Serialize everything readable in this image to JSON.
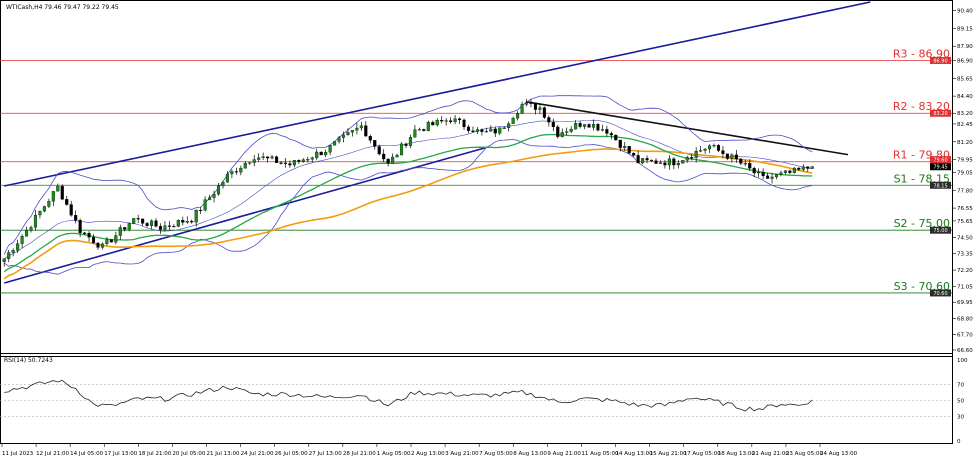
{
  "header": {
    "symbol_info": "WTICash,H4  79.46 79.47 79.22 79.45",
    "rsi_label": "RSI(14) 50.7243"
  },
  "chart_data": [
    {
      "type": "candlestick",
      "ylim": [
        66.6,
        91.0
      ],
      "y_ticks": [
        "90.40",
        "89.15",
        "87.90",
        "86.90",
        "85.65",
        "84.40",
        "83.20",
        "82.45",
        "81.20",
        "79.95",
        "79.05",
        "77.80",
        "76.55",
        "75.65",
        "74.50",
        "73.35",
        "72.20",
        "71.05",
        "69.95",
        "68.80",
        "67.70",
        "66.60"
      ],
      "x_labels": [
        "11 Jul 2023",
        "12 Jul 21:00",
        "14 Jul 05:00",
        "17 Jul 13:00",
        "18 Jul 21:00",
        "20 Jul 05:00",
        "21 Jul 13:00",
        "24 Jul 21:00",
        "26 Jul 05:00",
        "27 Jul 13:00",
        "28 Jul 21:00",
        "1 Aug 05:00",
        "2 Aug 13:00",
        "3 Aug 21:00",
        "7 Aug 05:00",
        "8 Aug 13:00",
        "9 Aug 21:00",
        "11 Aug 05:00",
        "14 Aug 13:00",
        "15 Aug 21:00",
        "17 Aug 05:00",
        "18 Aug 13:00",
        "21 Aug 21:00",
        "23 Aug 05:00",
        "24 Aug 13:00"
      ],
      "levels": [
        {
          "name": "R3",
          "value": 86.9,
          "label": "R3 - 86.90",
          "color": "#e03030"
        },
        {
          "name": "R2",
          "value": 83.2,
          "label": "R2 - 83.20",
          "color": "#e03030"
        },
        {
          "name": "R1",
          "value": 79.8,
          "label": "R1 - 79.80",
          "color": "#e03030"
        },
        {
          "name": "S1",
          "value": 78.15,
          "label": "S1 - 78.15",
          "color": "#1a7a1a"
        },
        {
          "name": "S2",
          "value": 75.0,
          "label": "S2 - 75.00",
          "color": "#1a7a1a"
        },
        {
          "name": "S3",
          "value": 70.6,
          "label": "S3 - 70.60",
          "color": "#1a7a1a"
        }
      ],
      "level_tags": [
        "86.90",
        "83.20",
        "79.80",
        "78.15",
        "75.00",
        "70.60"
      ],
      "current_price_tag": "79.45",
      "current_price": 79.45,
      "ma_tag": "79.60",
      "ma_value": 79.6,
      "trend_lines": [
        {
          "name": "channel-upper",
          "color": "#1a1a9a",
          "x0": 0,
          "y0": 78.1,
          "x1": 194,
          "y1": 91.0
        },
        {
          "name": "channel-lower",
          "color": "#1a1a9a",
          "x0": 0,
          "y0": 71.3,
          "x1": 108,
          "y1": 80.8
        },
        {
          "name": "downtrend",
          "color": "#111111",
          "x0": 117,
          "y0": 84.0,
          "x1": 189,
          "y1": 80.3
        }
      ],
      "candles_count": 195,
      "close_anchors": [
        [
          0,
          73.0
        ],
        [
          5,
          75.0
        ],
        [
          12,
          78.0
        ],
        [
          17,
          75.0
        ],
        [
          22,
          73.8
        ],
        [
          29,
          75.8
        ],
        [
          35,
          75.2
        ],
        [
          42,
          75.8
        ],
        [
          50,
          78.8
        ],
        [
          56,
          80.2
        ],
        [
          64,
          79.6
        ],
        [
          72,
          80.6
        ],
        [
          80,
          82.3
        ],
        [
          86,
          79.6
        ],
        [
          92,
          82.0
        ],
        [
          100,
          82.8
        ],
        [
          107,
          81.8
        ],
        [
          111,
          82.0
        ],
        [
          116,
          83.8
        ],
        [
          120,
          83.6
        ],
        [
          124,
          81.8
        ],
        [
          130,
          82.6
        ],
        [
          135,
          82.0
        ],
        [
          142,
          79.8
        ],
        [
          150,
          79.8
        ],
        [
          158,
          80.9
        ],
        [
          164,
          79.9
        ],
        [
          170,
          78.6
        ],
        [
          176,
          79.0
        ],
        [
          181,
          79.45
        ]
      ],
      "rsi": {
        "levels": [
          70,
          50,
          30
        ],
        "ylim": [
          0,
          100
        ],
        "tick_labels": [
          "100",
          "70",
          "50",
          "30",
          "0"
        ],
        "value": 50.7243,
        "anchors": [
          [
            0,
            62
          ],
          [
            6,
            68
          ],
          [
            12,
            75
          ],
          [
            16,
            65
          ],
          [
            20,
            45
          ],
          [
            24,
            43
          ],
          [
            30,
            52
          ],
          [
            36,
            52
          ],
          [
            42,
            58
          ],
          [
            50,
            67
          ],
          [
            56,
            58
          ],
          [
            64,
            58
          ],
          [
            72,
            54
          ],
          [
            80,
            57
          ],
          [
            86,
            44
          ],
          [
            92,
            60
          ],
          [
            100,
            58
          ],
          [
            106,
            56
          ],
          [
            111,
            57
          ],
          [
            116,
            60
          ],
          [
            120,
            55
          ],
          [
            124,
            48
          ],
          [
            130,
            52
          ],
          [
            136,
            50
          ],
          [
            142,
            44
          ],
          [
            148,
            44
          ],
          [
            154,
            54
          ],
          [
            160,
            48
          ],
          [
            166,
            40
          ],
          [
            170,
            40
          ],
          [
            174,
            46
          ],
          [
            178,
            44
          ],
          [
            181,
            50.7
          ]
        ]
      }
    }
  ]
}
